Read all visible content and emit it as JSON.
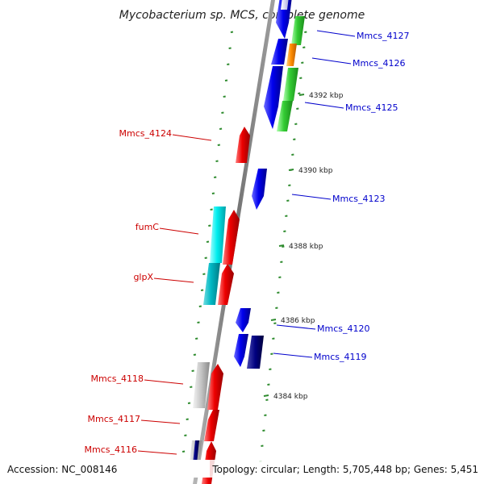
{
  "title": "Mycobacterium sp. MCS, complete genome",
  "footer": {
    "accession": "Accession: NC_008146",
    "summary": "Topology: circular; Length: 5,705,448 bp; Genes: 5,451"
  },
  "colors": {
    "forward_label": "#0000cc",
    "reverse_label": "#cc0000",
    "backbone": "#8c8c8c",
    "gc_dots": "#2e8b2e"
  },
  "kbp_ticks": [
    "4392 kbp",
    "4390 kbp",
    "4388 kbp",
    "4386 kbp",
    "4384 kbp"
  ],
  "labels_forward": [
    "Mmcs_4127",
    "Mmcs_4126",
    "Mmcs_4125",
    "Mmcs_4123",
    "Mmcs_4120",
    "Mmcs_4119"
  ],
  "labels_reverse": [
    "Mmcs_4124",
    "fumC",
    "glpX",
    "Mmcs_4118",
    "Mmcs_4117",
    "Mmcs_4116"
  ]
}
